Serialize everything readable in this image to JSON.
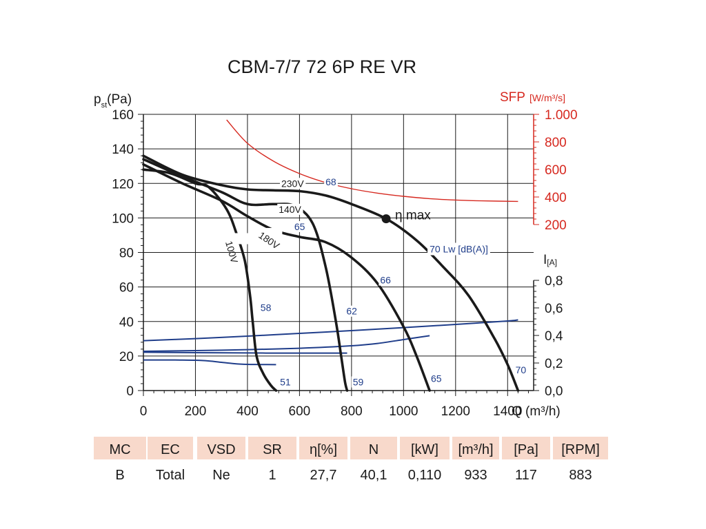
{
  "chart_data": {
    "type": "line",
    "title": "CBM-7/7 72 6P RE VR",
    "x_axis": {
      "label": "Q (m³/h)",
      "range": [
        0,
        1500
      ],
      "ticks": [
        0,
        200,
        400,
        600,
        800,
        1000,
        1200,
        1400
      ]
    },
    "y_axis": {
      "label_main": "p",
      "label_sub": "st",
      "label_unit": "(Pa)",
      "range": [
        0,
        160
      ],
      "ticks": [
        0,
        20,
        40,
        60,
        80,
        100,
        120,
        140,
        160
      ]
    },
    "sfp_axis": {
      "label": "SFP",
      "unit": "[W/m³/s]",
      "color": "#d6281f",
      "ticks": [
        200,
        400,
        600,
        800,
        1000
      ],
      "tick_labels": [
        "200",
        "400",
        "600",
        "800",
        "1.000"
      ]
    },
    "current_axis": {
      "label": "I",
      "unit": "[A]",
      "range": [
        0,
        0.8
      ],
      "ticks": [
        0,
        0.2,
        0.4,
        0.6,
        0.8
      ],
      "tick_labels": [
        "0,0",
        "0,2",
        "0,4",
        "0,6",
        "0,8"
      ]
    },
    "grid": true,
    "pressure_series": [
      {
        "name": "230V",
        "x": [
          0,
          150,
          300,
          400,
          500,
          600,
          700,
          800,
          933,
          1050,
          1150,
          1250,
          1350,
          1400,
          1440
        ],
        "y": [
          136,
          125,
          119,
          116.5,
          116,
          115.5,
          113,
          108,
          99.5,
          87,
          72,
          55,
          30,
          15,
          0
        ]
      },
      {
        "name": "140V",
        "x": [
          0,
          150,
          300,
          400,
          500,
          580,
          650,
          700,
          740,
          760,
          775,
          783
        ],
        "y": [
          134,
          124,
          115,
          108,
          108,
          107,
          97,
          72,
          40,
          20,
          5,
          0
        ]
      },
      {
        "name": "180V",
        "x": [
          0,
          150,
          300,
          400,
          500,
          600,
          700,
          800,
          900,
          1000,
          1050,
          1100
        ],
        "y": [
          131,
          120,
          110,
          101,
          93,
          89,
          86,
          77,
          62,
          37,
          20,
          0
        ]
      },
      {
        "name": "100V",
        "x": [
          0,
          100,
          200,
          250,
          320,
          360,
          390,
          410,
          420,
          435,
          460,
          490,
          510
        ],
        "y": [
          128,
          126,
          120,
          118,
          105,
          90,
          75,
          55,
          40,
          20,
          10,
          3,
          0
        ]
      }
    ],
    "efficiency_point": {
      "label": "η max",
      "x": 933,
      "y": 99.5
    },
    "sfp_curve": {
      "x": [
        320,
        400,
        500,
        600,
        700,
        800,
        900,
        1000,
        1100,
        1200,
        1300,
        1440
      ],
      "y": [
        960,
        790,
        660,
        570,
        505,
        460,
        428,
        405,
        388,
        378,
        372,
        368
      ]
    },
    "current_series": [
      {
        "x": [
          0,
          200,
          400,
          600,
          800,
          1000,
          1200,
          1400,
          1440
        ],
        "y": [
          0.362,
          0.377,
          0.395,
          0.415,
          0.435,
          0.457,
          0.48,
          0.505,
          0.513
        ]
      },
      {
        "x": [
          0,
          200,
          400,
          600,
          800,
          900,
          1000,
          1100
        ],
        "y": [
          0.285,
          0.29,
          0.297,
          0.307,
          0.325,
          0.342,
          0.37,
          0.398
        ]
      },
      {
        "x": [
          0,
          200,
          400,
          500,
          600,
          700,
          783
        ],
        "y": [
          0.278,
          0.275,
          0.273,
          0.272,
          0.272,
          0.272,
          0.272
        ]
      },
      {
        "x": [
          0,
          100,
          150,
          200,
          250,
          300,
          350,
          400,
          450,
          510
        ],
        "y": [
          0.222,
          0.222,
          0.221,
          0.22,
          0.215,
          0.205,
          0.195,
          0.19,
          0.189,
          0.188
        ]
      }
    ],
    "annotations": [
      {
        "text": "230V",
        "x": 530,
        "y": 118,
        "color": "#1a1a1a",
        "angle": 0
      },
      {
        "text": "140V",
        "x": 520,
        "y": 103,
        "color": "#1a1a1a",
        "angle": 0
      },
      {
        "text": "180V",
        "x": 440,
        "y": 89,
        "color": "#1a1a1a",
        "angle": 34
      },
      {
        "text": "100V",
        "x": 315,
        "y": 86,
        "color": "#1a1a1a",
        "angle": 74
      },
      {
        "text": "68",
        "x": 700,
        "y": 119,
        "color": "#1f3d8a",
        "angle": 0
      },
      {
        "text": "65",
        "x": 580,
        "y": 93,
        "color": "#1f3d8a",
        "angle": 0
      },
      {
        "text": "66",
        "x": 910,
        "y": 62,
        "color": "#1f3d8a",
        "angle": 0
      },
      {
        "text": "58",
        "x": 450,
        "y": 46,
        "color": "#1f3d8a",
        "angle": 0
      },
      {
        "text": "62",
        "x": 780,
        "y": 44,
        "color": "#1f3d8a",
        "angle": 0
      },
      {
        "text": "70 Lw [dB(A)]",
        "x": 1100,
        "y": 80,
        "color": "#1f3d8a",
        "angle": 0
      },
      {
        "text": "51",
        "x": 525,
        "y": 3,
        "color": "#1f3d8a",
        "angle": 0
      },
      {
        "text": "59",
        "x": 805,
        "y": 3,
        "color": "#1f3d8a",
        "angle": 0
      },
      {
        "text": "65",
        "x": 1105,
        "y": 5,
        "color": "#1f3d8a",
        "angle": 0
      },
      {
        "text": "70",
        "x": 1430,
        "y": 10,
        "color": "#1f3d8a",
        "angle": 0
      }
    ]
  },
  "colors": {
    "pressure_curve": "#1a1a1a",
    "current_curve": "#1f3d8a",
    "sfp_curve": "#d6281f",
    "table_header_bg": "#f8d9cb"
  },
  "table": {
    "headers": [
      "MC",
      "EC",
      "VSD",
      "SR",
      "η[%]",
      "N",
      "[kW]",
      "[m³/h]",
      "[Pa]",
      "[RPM]"
    ],
    "values": [
      "B",
      "Total",
      "Ne",
      "1",
      "27,7",
      "40,1",
      "0,110",
      "933",
      "117",
      "883"
    ]
  }
}
